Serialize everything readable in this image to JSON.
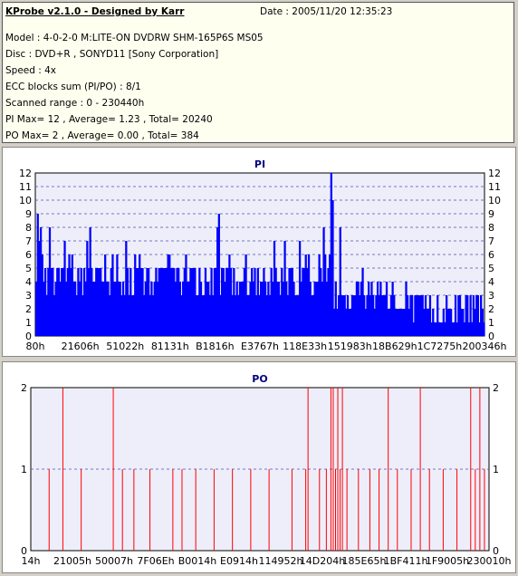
{
  "header": {
    "title": "KProbe v2.1.0 - Designed by Karr",
    "date": "Date : 2005/11/20 12:35:23",
    "lines": [
      "Model : 4-0-2-0 M:LITE-ON DVDRW SHM-165P6S MS05",
      "Disc : DVD+R , SONYD11 [Sony Corporation]",
      "Speed : 4x",
      "ECC blocks sum (PI/PO) : 8/1",
      "Scanned range : 0 - 230440h",
      "PI Max= 12 , Average= 1.23 , Total= 20240",
      "PO Max= 2 , Average= 0.00 , Total= 384"
    ]
  },
  "colors": {
    "pi": "#0000ff",
    "po": "#ff0000",
    "plot_bg": "#eeeefa"
  },
  "chart_data": [
    {
      "type": "bar",
      "title": "PI",
      "ylim": [
        0,
        12
      ],
      "yticks": [
        0,
        1,
        2,
        3,
        4,
        5,
        6,
        7,
        8,
        9,
        10,
        11,
        12
      ],
      "xticklabels": [
        "80h",
        "21606h",
        "51022h",
        "81131h",
        "B1816h",
        "E3767h",
        "118E33h",
        "151983h",
        "18B629h",
        "1C7275h",
        "200346h"
      ],
      "grid": true,
      "summary": {
        "max": 12,
        "average": 1.23,
        "total": 20240
      },
      "spikes": [
        {
          "pos": 0.005,
          "value": 9
        },
        {
          "pos": 0.01,
          "value": 8
        },
        {
          "pos": 0.12,
          "value": 8
        },
        {
          "pos": 0.2,
          "value": 7
        },
        {
          "pos": 0.405,
          "value": 9
        },
        {
          "pos": 0.635,
          "value": 9
        },
        {
          "pos": 0.64,
          "value": 8
        },
        {
          "pos": 0.655,
          "value": 12
        },
        {
          "pos": 0.66,
          "value": 10
        },
        {
          "pos": 0.675,
          "value": 8
        }
      ]
    },
    {
      "type": "bar",
      "title": "PO",
      "ylim": [
        0,
        2
      ],
      "yticks": [
        0,
        1,
        2
      ],
      "xticklabels": [
        "14h",
        "21005h",
        "50007h",
        "7F06Eh",
        "B0014h",
        "E0914h",
        "114952h",
        "14D204h",
        "185E65h",
        "1BF411h",
        "1F9005h",
        "230010h"
      ],
      "grid": true,
      "summary": {
        "max": 2,
        "average": 0.0,
        "total": 384
      },
      "events": [
        {
          "pos": 0.07,
          "value": 2
        },
        {
          "pos": 0.18,
          "value": 2
        },
        {
          "pos": 0.04,
          "value": 1
        },
        {
          "pos": 0.11,
          "value": 1
        },
        {
          "pos": 0.2,
          "value": 1
        },
        {
          "pos": 0.225,
          "value": 1
        },
        {
          "pos": 0.26,
          "value": 1
        },
        {
          "pos": 0.31,
          "value": 1
        },
        {
          "pos": 0.33,
          "value": 1
        },
        {
          "pos": 0.36,
          "value": 1
        },
        {
          "pos": 0.4,
          "value": 1
        },
        {
          "pos": 0.44,
          "value": 1
        },
        {
          "pos": 0.48,
          "value": 1
        },
        {
          "pos": 0.52,
          "value": 1
        },
        {
          "pos": 0.57,
          "value": 1
        },
        {
          "pos": 0.6,
          "value": 1
        },
        {
          "pos": 0.605,
          "value": 2
        },
        {
          "pos": 0.63,
          "value": 1
        },
        {
          "pos": 0.645,
          "value": 1
        },
        {
          "pos": 0.655,
          "value": 2
        },
        {
          "pos": 0.66,
          "value": 2
        },
        {
          "pos": 0.665,
          "value": 1
        },
        {
          "pos": 0.67,
          "value": 2
        },
        {
          "pos": 0.675,
          "value": 1
        },
        {
          "pos": 0.68,
          "value": 2
        },
        {
          "pos": 0.69,
          "value": 1
        },
        {
          "pos": 0.715,
          "value": 1
        },
        {
          "pos": 0.74,
          "value": 1
        },
        {
          "pos": 0.76,
          "value": 1
        },
        {
          "pos": 0.78,
          "value": 2
        },
        {
          "pos": 0.8,
          "value": 1
        },
        {
          "pos": 0.83,
          "value": 1
        },
        {
          "pos": 0.85,
          "value": 2
        },
        {
          "pos": 0.87,
          "value": 1
        },
        {
          "pos": 0.9,
          "value": 1
        },
        {
          "pos": 0.93,
          "value": 1
        },
        {
          "pos": 0.96,
          "value": 2
        },
        {
          "pos": 0.97,
          "value": 1
        },
        {
          "pos": 0.98,
          "value": 2
        },
        {
          "pos": 0.99,
          "value": 1
        }
      ]
    }
  ]
}
